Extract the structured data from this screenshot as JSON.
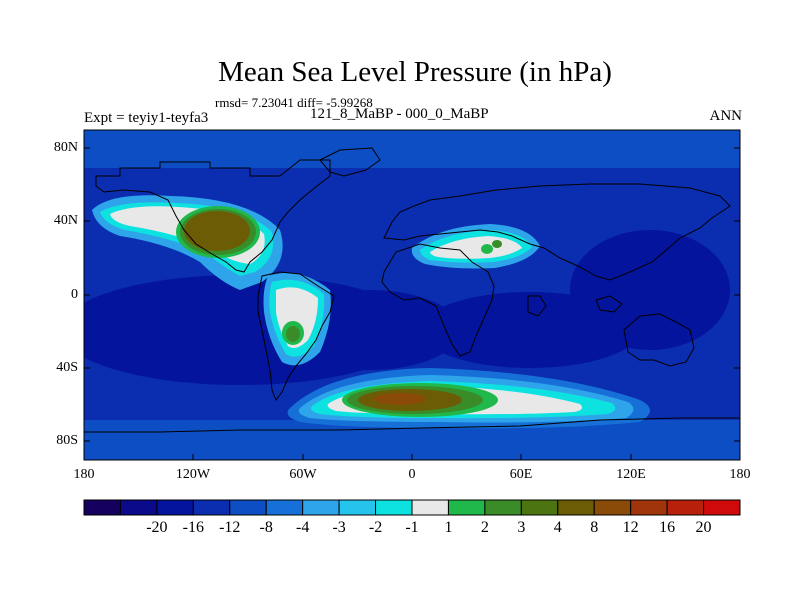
{
  "title": "Mean Sea Level Pressure (in hPa)",
  "stats": "rmsd= 7.23041 diff= -5.99268",
  "experiment": "Expt = teyiy1-teyfa3",
  "period": "121_8_MaBP - 000_0_MaBP",
  "season": "ANN",
  "lat_labels": [
    "80N",
    "40N",
    "0",
    "40S",
    "80S"
  ],
  "lon_labels": [
    "180",
    "120W",
    "60W",
    "0",
    "60E",
    "120E",
    "180"
  ],
  "colorbar": {
    "colors": [
      "#150060",
      "#0a0a8a",
      "#04149c",
      "#0b2db0",
      "#0e4ec4",
      "#1670d8",
      "#2ea5ea",
      "#26c4ec",
      "#0ee2e0",
      "#e8e8e8",
      "#20b84a",
      "#3a8c28",
      "#4c7410",
      "#6c5c06",
      "#8a4a08",
      "#a0340a",
      "#b8200c",
      "#d00a0a"
    ],
    "labels": [
      "-20",
      "-16",
      "-12",
      "-8",
      "-4",
      "-3",
      "-2",
      "-1",
      "1",
      "2",
      "3",
      "4",
      "8",
      "12",
      "16",
      "20"
    ]
  },
  "colors": {
    "ocean_base": "#0b2db0",
    "deep_low": "#04149c",
    "coastline": "#000000"
  }
}
